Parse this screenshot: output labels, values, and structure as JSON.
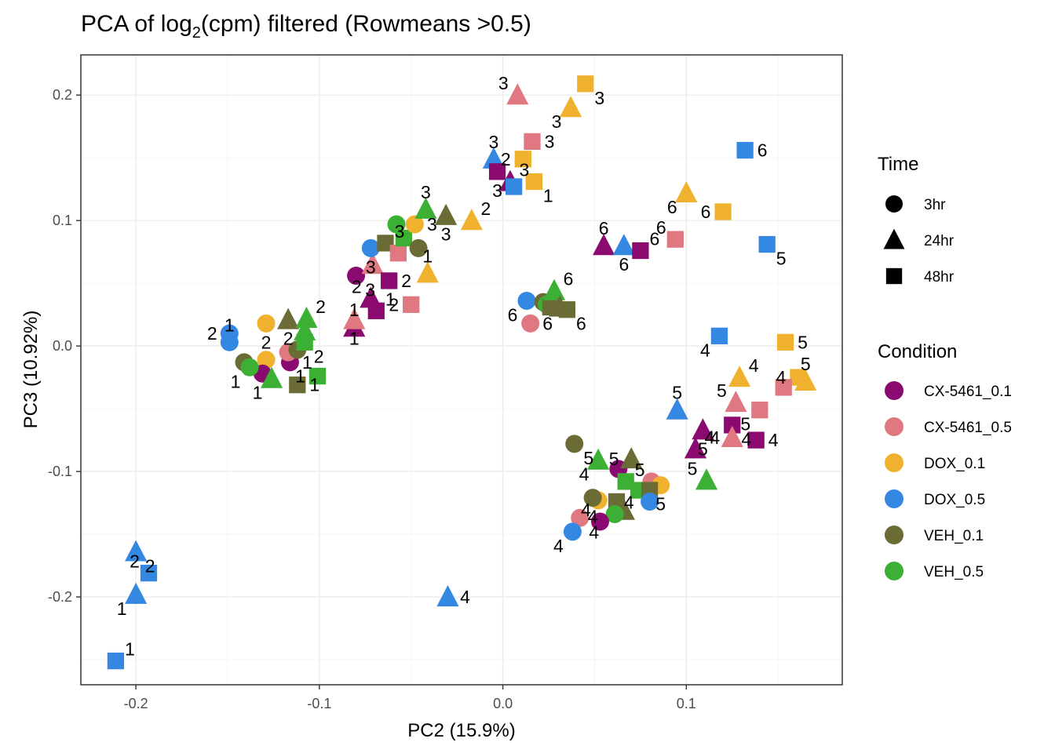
{
  "chart_data": {
    "type": "scatter",
    "title": "PCA of log2(cpm) filtered (Rowmeans >0.5)",
    "title_parts": {
      "pre": "PCA of log",
      "sub": "2",
      "post": "(cpm) filtered (Rowmeans >0.5)"
    },
    "xlabel": "PC2 (15.9%)",
    "ylabel": "PC3 (10.92%)",
    "xlim": [
      -0.23,
      0.185
    ],
    "ylim": [
      -0.27,
      0.232
    ],
    "xticks": [
      -0.2,
      -0.1,
      0.0,
      0.1
    ],
    "xtick_labels": [
      "-0.2",
      "-0.1",
      "0.0",
      "0.1"
    ],
    "yticks": [
      -0.2,
      -0.1,
      0.0,
      0.1,
      0.2
    ],
    "ytick_labels": [
      "-0.2",
      "-0.1",
      "0.0",
      "0.1",
      "0.2"
    ],
    "grid": true,
    "legend_position": "right",
    "legend": {
      "time": {
        "title": "Time",
        "items": [
          {
            "label": "3hr",
            "shape": "circle"
          },
          {
            "label": "24hr",
            "shape": "triangle"
          },
          {
            "label": "48hr",
            "shape": "square"
          }
        ]
      },
      "condition": {
        "title": "Condition",
        "items": [
          {
            "label": "CX-5461_0.1",
            "color": "#8B0A70"
          },
          {
            "label": "CX-5461_0.5",
            "color": "#E07882"
          },
          {
            "label": "DOX_0.1",
            "color": "#F0B22E"
          },
          {
            "label": "DOX_0.5",
            "color": "#3588E2"
          },
          {
            "label": "VEH_0.1",
            "color": "#6B6B35"
          },
          {
            "label": "VEH_0.5",
            "color": "#3CB034"
          }
        ]
      }
    },
    "points": [
      {
        "x": -0.211,
        "y": -0.251,
        "cond": "DOX_0.5",
        "time": "48hr",
        "label": "1"
      },
      {
        "x": -0.193,
        "y": -0.181,
        "cond": "DOX_0.5",
        "time": "48hr",
        "label": "2"
      },
      {
        "x": -0.2,
        "y": -0.164,
        "cond": "DOX_0.5",
        "time": "24hr",
        "label": "2"
      },
      {
        "x": -0.2,
        "y": -0.198,
        "cond": "DOX_0.5",
        "time": "24hr",
        "label": "1"
      },
      {
        "x": -0.03,
        "y": -0.2,
        "cond": "DOX_0.5",
        "time": "24hr",
        "label": "4"
      },
      {
        "x": -0.149,
        "y": 0.01,
        "cond": "DOX_0.5",
        "time": "3hr",
        "label": "2"
      },
      {
        "x": -0.149,
        "y": 0.003,
        "cond": "DOX_0.5",
        "time": "3hr",
        "label": "1"
      },
      {
        "x": -0.129,
        "y": 0.018,
        "cond": "DOX_0.1",
        "time": "3hr",
        "label": "2"
      },
      {
        "x": -0.129,
        "y": -0.011,
        "cond": "DOX_0.1",
        "time": "3hr",
        "label": ""
      },
      {
        "x": -0.141,
        "y": -0.013,
        "cond": "VEH_0.1",
        "time": "3hr",
        "label": ""
      },
      {
        "x": -0.131,
        "y": -0.022,
        "cond": "CX-5461_0.1",
        "time": "3hr",
        "label": ""
      },
      {
        "x": -0.138,
        "y": -0.017,
        "cond": "VEH_0.5",
        "time": "3hr",
        "label": "1"
      },
      {
        "x": -0.116,
        "y": -0.013,
        "cond": "CX-5461_0.1",
        "time": "3hr",
        "label": "1"
      },
      {
        "x": -0.117,
        "y": -0.005,
        "cond": "CX-5461_0.5",
        "time": "3hr",
        "label": ""
      },
      {
        "x": -0.112,
        "y": -0.003,
        "cond": "VEH_0.1",
        "time": "3hr",
        "label": ""
      },
      {
        "x": -0.117,
        "y": 0.021,
        "cond": "VEH_0.1",
        "time": "24hr",
        "label": "2"
      },
      {
        "x": -0.107,
        "y": 0.022,
        "cond": "VEH_0.5",
        "time": "24hr",
        "label": "2"
      },
      {
        "x": -0.108,
        "y": 0.012,
        "cond": "VEH_0.5",
        "time": "24hr",
        "label": ""
      },
      {
        "x": -0.108,
        "y": 0.003,
        "cond": "VEH_0.5",
        "time": "48hr",
        "label": "2"
      },
      {
        "x": -0.126,
        "y": -0.026,
        "cond": "VEH_0.5",
        "time": "24hr",
        "label": "1"
      },
      {
        "x": -0.112,
        "y": -0.031,
        "cond": "VEH_0.1",
        "time": "48hr",
        "label": "1"
      },
      {
        "x": -0.101,
        "y": -0.024,
        "cond": "VEH_0.5",
        "time": "48hr",
        "label": "1"
      },
      {
        "x": -0.081,
        "y": 0.015,
        "cond": "CX-5461_0.1",
        "time": "24hr",
        "label": "1"
      },
      {
        "x": -0.081,
        "y": 0.021,
        "cond": "CX-5461_0.5",
        "time": "24hr",
        "label": "1"
      },
      {
        "x": -0.069,
        "y": 0.028,
        "cond": "CX-5461_0.1",
        "time": "48hr",
        "label": "1"
      },
      {
        "x": -0.072,
        "y": 0.038,
        "cond": "CX-5461_0.1",
        "time": "24hr",
        "label": "2"
      },
      {
        "x": -0.08,
        "y": 0.056,
        "cond": "CX-5461_0.1",
        "time": "3hr",
        "label": "3"
      },
      {
        "x": -0.071,
        "y": 0.065,
        "cond": "CX-5461_0.5",
        "time": "24hr",
        "label": ""
      },
      {
        "x": -0.062,
        "y": 0.052,
        "cond": "CX-5461_0.1",
        "time": "48hr",
        "label": "2"
      },
      {
        "x": -0.05,
        "y": 0.033,
        "cond": "CX-5461_0.5",
        "time": "48hr",
        "label": "2"
      },
      {
        "x": -0.041,
        "y": 0.058,
        "cond": "DOX_0.1",
        "time": "24hr",
        "label": "1"
      },
      {
        "x": -0.072,
        "y": 0.078,
        "cond": "DOX_0.5",
        "time": "3hr",
        "label": "3"
      },
      {
        "x": -0.064,
        "y": 0.082,
        "cond": "VEH_0.1",
        "time": "48hr",
        "label": "3"
      },
      {
        "x": -0.057,
        "y": 0.074,
        "cond": "CX-5461_0.5",
        "time": "48hr",
        "label": ""
      },
      {
        "x": -0.054,
        "y": 0.086,
        "cond": "VEH_0.5",
        "time": "48hr",
        "label": ""
      },
      {
        "x": -0.058,
        "y": 0.097,
        "cond": "VEH_0.5",
        "time": "3hr",
        "label": ""
      },
      {
        "x": -0.048,
        "y": 0.097,
        "cond": "DOX_0.1",
        "time": "3hr",
        "label": "3"
      },
      {
        "x": -0.046,
        "y": 0.078,
        "cond": "VEH_0.1",
        "time": "3hr",
        "label": ""
      },
      {
        "x": -0.042,
        "y": 0.109,
        "cond": "VEH_0.5",
        "time": "24hr",
        "label": "3"
      },
      {
        "x": -0.031,
        "y": 0.104,
        "cond": "VEH_0.1",
        "time": "24hr",
        "label": "3"
      },
      {
        "x": -0.017,
        "y": 0.1,
        "cond": "DOX_0.1",
        "time": "24hr",
        "label": "2"
      },
      {
        "x": 0.008,
        "y": 0.2,
        "cond": "CX-5461_0.5",
        "time": "24hr",
        "label": "3"
      },
      {
        "x": 0.045,
        "y": 0.209,
        "cond": "DOX_0.1",
        "time": "48hr",
        "label": "3"
      },
      {
        "x": 0.037,
        "y": 0.19,
        "cond": "DOX_0.1",
        "time": "24hr",
        "label": "3"
      },
      {
        "x": 0.016,
        "y": 0.163,
        "cond": "CX-5461_0.5",
        "time": "48hr",
        "label": "3"
      },
      {
        "x": 0.011,
        "y": 0.149,
        "cond": "DOX_0.1",
        "time": "48hr",
        "label": "2"
      },
      {
        "x": -0.005,
        "y": 0.149,
        "cond": "DOX_0.5",
        "time": "24hr",
        "label": "3"
      },
      {
        "x": -0.003,
        "y": 0.139,
        "cond": "CX-5461_0.1",
        "time": "48hr",
        "label": "3"
      },
      {
        "x": 0.004,
        "y": 0.131,
        "cond": "CX-5461_0.1",
        "time": "24hr",
        "label": "3"
      },
      {
        "x": 0.006,
        "y": 0.127,
        "cond": "DOX_0.5",
        "time": "48hr",
        "label": ""
      },
      {
        "x": 0.017,
        "y": 0.131,
        "cond": "DOX_0.1",
        "time": "48hr",
        "label": "1"
      },
      {
        "x": 0.1,
        "y": 0.122,
        "cond": "DOX_0.1",
        "time": "24hr",
        "label": "6"
      },
      {
        "x": 0.132,
        "y": 0.156,
        "cond": "DOX_0.5",
        "time": "48hr",
        "label": "6"
      },
      {
        "x": 0.12,
        "y": 0.107,
        "cond": "DOX_0.1",
        "time": "48hr",
        "label": "6"
      },
      {
        "x": 0.055,
        "y": 0.08,
        "cond": "CX-5461_0.1",
        "time": "24hr",
        "label": "6"
      },
      {
        "x": 0.066,
        "y": 0.08,
        "cond": "DOX_0.5",
        "time": "24hr",
        "label": "6"
      },
      {
        "x": 0.075,
        "y": 0.076,
        "cond": "CX-5461_0.1",
        "time": "48hr",
        "label": "6"
      },
      {
        "x": 0.094,
        "y": 0.085,
        "cond": "CX-5461_0.5",
        "time": "48hr",
        "label": "6"
      },
      {
        "x": 0.144,
        "y": 0.081,
        "cond": "DOX_0.5",
        "time": "48hr",
        "label": "5"
      },
      {
        "x": 0.013,
        "y": 0.036,
        "cond": "DOX_0.5",
        "time": "3hr",
        "label": "6"
      },
      {
        "x": 0.015,
        "y": 0.018,
        "cond": "CX-5461_0.5",
        "time": "3hr",
        "label": "6"
      },
      {
        "x": 0.022,
        "y": 0.035,
        "cond": "VEH_0.1",
        "time": "3hr",
        "label": ""
      },
      {
        "x": 0.024,
        "y": 0.033,
        "cond": "VEH_0.5",
        "time": "3hr",
        "label": ""
      },
      {
        "x": 0.026,
        "y": 0.031,
        "cond": "VEH_0.1",
        "time": "48hr",
        "label": ""
      },
      {
        "x": 0.028,
        "y": 0.044,
        "cond": "VEH_0.5",
        "time": "24hr",
        "label": "6"
      },
      {
        "x": 0.031,
        "y": 0.031,
        "cond": "VEH_0.1",
        "time": "24hr",
        "label": ""
      },
      {
        "x": 0.035,
        "y": 0.029,
        "cond": "VEH_0.1",
        "time": "48hr",
        "label": "6"
      },
      {
        "x": 0.118,
        "y": 0.008,
        "cond": "DOX_0.5",
        "time": "48hr",
        "label": "4"
      },
      {
        "x": 0.154,
        "y": 0.003,
        "cond": "DOX_0.1",
        "time": "48hr",
        "label": "5"
      },
      {
        "x": 0.161,
        "y": -0.025,
        "cond": "DOX_0.1",
        "time": "48hr",
        "label": "4"
      },
      {
        "x": 0.165,
        "y": -0.028,
        "cond": "DOX_0.1",
        "time": "24hr",
        "label": "5"
      },
      {
        "x": 0.153,
        "y": -0.033,
        "cond": "CX-5461_0.5",
        "time": "48hr",
        "label": ""
      },
      {
        "x": 0.129,
        "y": -0.025,
        "cond": "DOX_0.1",
        "time": "24hr",
        "label": "4"
      },
      {
        "x": 0.127,
        "y": -0.045,
        "cond": "CX-5461_0.5",
        "time": "24hr",
        "label": "5"
      },
      {
        "x": 0.125,
        "y": -0.063,
        "cond": "CX-5461_0.1",
        "time": "48hr",
        "label": "4"
      },
      {
        "x": 0.14,
        "y": -0.051,
        "cond": "CX-5461_0.5",
        "time": "48hr",
        "label": "5"
      },
      {
        "x": 0.138,
        "y": -0.075,
        "cond": "CX-5461_0.1",
        "time": "48hr",
        "label": "4"
      },
      {
        "x": 0.125,
        "y": -0.073,
        "cond": "CX-5461_0.5",
        "time": "24hr",
        "label": "4"
      },
      {
        "x": 0.095,
        "y": -0.051,
        "cond": "DOX_0.5",
        "time": "24hr",
        "label": "5"
      },
      {
        "x": 0.109,
        "y": -0.067,
        "cond": "CX-5461_0.1",
        "time": "24hr",
        "label": "5"
      },
      {
        "x": 0.105,
        "y": -0.082,
        "cond": "CX-5461_0.1",
        "time": "24hr",
        "label": "4"
      },
      {
        "x": 0.111,
        "y": -0.107,
        "cond": "VEH_0.5",
        "time": "24hr",
        "label": "5"
      },
      {
        "x": 0.039,
        "y": -0.078,
        "cond": "VEH_0.1",
        "time": "3hr",
        "label": "5"
      },
      {
        "x": 0.052,
        "y": -0.091,
        "cond": "VEH_0.5",
        "time": "24hr",
        "label": "4"
      },
      {
        "x": 0.063,
        "y": -0.098,
        "cond": "CX-5461_0.1",
        "time": "3hr",
        "label": ""
      },
      {
        "x": 0.07,
        "y": -0.09,
        "cond": "VEH_0.1",
        "time": "24hr",
        "label": "5"
      },
      {
        "x": 0.081,
        "y": -0.108,
        "cond": "CX-5461_0.5",
        "time": "3hr",
        "label": ""
      },
      {
        "x": 0.086,
        "y": -0.111,
        "cond": "DOX_0.1",
        "time": "3hr",
        "label": "5"
      },
      {
        "x": 0.067,
        "y": -0.108,
        "cond": "VEH_0.5",
        "time": "48hr",
        "label": "5"
      },
      {
        "x": 0.074,
        "y": -0.115,
        "cond": "VEH_0.5",
        "time": "48hr",
        "label": ""
      },
      {
        "x": 0.08,
        "y": -0.115,
        "cond": "VEH_0.1",
        "time": "48hr",
        "label": ""
      },
      {
        "x": 0.08,
        "y": -0.124,
        "cond": "DOX_0.5",
        "time": "3hr",
        "label": ""
      },
      {
        "x": 0.066,
        "y": -0.131,
        "cond": "VEH_0.1",
        "time": "24hr",
        "label": ""
      },
      {
        "x": 0.062,
        "y": -0.124,
        "cond": "VEH_0.1",
        "time": "48hr",
        "label": ""
      },
      {
        "x": 0.052,
        "y": -0.123,
        "cond": "DOX_0.1",
        "time": "3hr",
        "label": ""
      },
      {
        "x": 0.049,
        "y": -0.121,
        "cond": "VEH_0.1",
        "time": "3hr",
        "label": "4"
      },
      {
        "x": 0.061,
        "y": -0.134,
        "cond": "VEH_0.5",
        "time": "3hr",
        "label": "4"
      },
      {
        "x": 0.053,
        "y": -0.14,
        "cond": "CX-5461_0.1",
        "time": "3hr",
        "label": "4"
      },
      {
        "x": 0.042,
        "y": -0.137,
        "cond": "CX-5461_0.5",
        "time": "3hr",
        "label": "4"
      },
      {
        "x": 0.038,
        "y": -0.148,
        "cond": "DOX_0.5",
        "time": "3hr",
        "label": "4"
      }
    ]
  }
}
